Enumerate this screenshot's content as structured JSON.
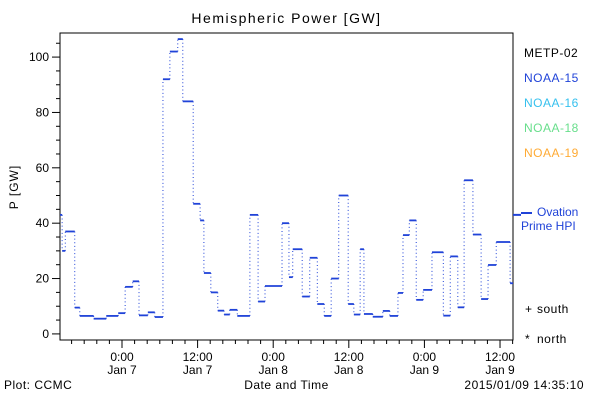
{
  "title": "Hemispheric Power [GW]",
  "footer": {
    "left": "Plot: CCMC",
    "center": "Date and Time",
    "right": "2015/01/09 14:35:10"
  },
  "legend": {
    "satellites": [
      {
        "label": "METP-02",
        "color": "#000000"
      },
      {
        "label": "NOAA-15",
        "color": "#2043d8"
      },
      {
        "label": "NOAA-16",
        "color": "#35c0ee"
      },
      {
        "label": "NOAA-18",
        "color": "#67de8b"
      },
      {
        "label": "NOAA-19",
        "color": "#ffaa33"
      }
    ],
    "ovation": {
      "line1": "Ovation",
      "line2": "Prime HPI",
      "color": "#2043d8",
      "tick_value": 43
    },
    "markers": [
      {
        "symbol": "+",
        "label": "south"
      },
      {
        "symbol": "*",
        "label": "north"
      }
    ]
  },
  "chart_data": {
    "type": "line",
    "style": "steps-dotted-risers",
    "title": "Hemispheric Power [GW]",
    "xlabel": "Date and Time",
    "ylabel": "P [GW]",
    "line_color": "#2043d8",
    "grid": false,
    "x_unit": "hours from 2015-01-07 00:00 UT",
    "x_range": [
      -9.84,
      62.06
    ],
    "y_range": [
      -2.2,
      108.7
    ],
    "y_major_ticks": [
      0,
      20,
      40,
      60,
      80,
      100
    ],
    "y_minor_step": 5,
    "x_minor_step_hours": 2,
    "x_major_ticks": [
      {
        "t": 0,
        "line1": "0:00",
        "line2": "Jan 7"
      },
      {
        "t": 12,
        "line1": "12:00",
        "line2": "Jan 7"
      },
      {
        "t": 24,
        "line1": "0:00",
        "line2": "Jan 8"
      },
      {
        "t": 36,
        "line1": "12:00",
        "line2": "Jan 8"
      },
      {
        "t": 48,
        "line1": "0:00",
        "line2": "Jan 9"
      },
      {
        "t": 60,
        "line1": "12:00",
        "line2": "Jan 9"
      }
    ],
    "steps": [
      [
        -9.84,
        -9.5,
        43
      ],
      [
        -9.5,
        -9.0,
        30
      ],
      [
        -9.0,
        -7.5,
        37
      ],
      [
        -7.5,
        -6.7,
        9.5
      ],
      [
        -6.7,
        -4.5,
        6.5
      ],
      [
        -4.5,
        -2.5,
        5.5
      ],
      [
        -2.5,
        -0.6,
        6.5
      ],
      [
        -0.6,
        0.5,
        7.5
      ],
      [
        0.5,
        1.7,
        17
      ],
      [
        1.7,
        2.7,
        19
      ],
      [
        2.7,
        4.1,
        6.7
      ],
      [
        4.1,
        5.2,
        7.8
      ],
      [
        5.2,
        6.5,
        6.1
      ],
      [
        6.5,
        7.6,
        92
      ],
      [
        7.6,
        8.85,
        102
      ],
      [
        8.85,
        9.65,
        106.5
      ],
      [
        9.65,
        11.3,
        84
      ],
      [
        11.3,
        12.4,
        47
      ],
      [
        12.4,
        13.0,
        41
      ],
      [
        13.0,
        14.1,
        22
      ],
      [
        14.1,
        15.2,
        15
      ],
      [
        15.2,
        16.2,
        8.4
      ],
      [
        16.2,
        17.1,
        7
      ],
      [
        17.1,
        18.3,
        8.7
      ],
      [
        18.3,
        20.3,
        6.5
      ],
      [
        20.3,
        21.6,
        43
      ],
      [
        21.6,
        22.7,
        11.7
      ],
      [
        22.7,
        25.4,
        17.3
      ],
      [
        25.4,
        26.5,
        40
      ],
      [
        26.5,
        27.1,
        20.5
      ],
      [
        27.1,
        28.6,
        30.6
      ],
      [
        28.6,
        29.8,
        13.5
      ],
      [
        29.8,
        31.0,
        27.5
      ],
      [
        31.0,
        32.1,
        10.8
      ],
      [
        32.1,
        33.2,
        6.5
      ],
      [
        33.2,
        34.4,
        20
      ],
      [
        34.4,
        35.9,
        50
      ],
      [
        35.9,
        36.8,
        10.8
      ],
      [
        36.8,
        37.8,
        7
      ],
      [
        37.8,
        38.4,
        30.6
      ],
      [
        38.4,
        39.8,
        7.2
      ],
      [
        39.8,
        41.4,
        6.2
      ],
      [
        41.4,
        42.5,
        8.3
      ],
      [
        42.5,
        43.8,
        6.5
      ],
      [
        43.8,
        44.6,
        14.8
      ],
      [
        44.6,
        45.6,
        35.7
      ],
      [
        45.6,
        46.7,
        41
      ],
      [
        46.7,
        47.8,
        12.3
      ],
      [
        47.8,
        49.2,
        15.9
      ],
      [
        49.2,
        51.0,
        29.5
      ],
      [
        51.0,
        52.1,
        6.6
      ],
      [
        52.1,
        53.3,
        28
      ],
      [
        53.3,
        54.3,
        9.6
      ],
      [
        54.3,
        55.7,
        55.5
      ],
      [
        55.7,
        57.0,
        35.9
      ],
      [
        57.0,
        58.1,
        12.6
      ],
      [
        58.1,
        59.4,
        24.9
      ],
      [
        59.4,
        61.6,
        33.2
      ],
      [
        61.6,
        62.06,
        18.3
      ]
    ]
  }
}
